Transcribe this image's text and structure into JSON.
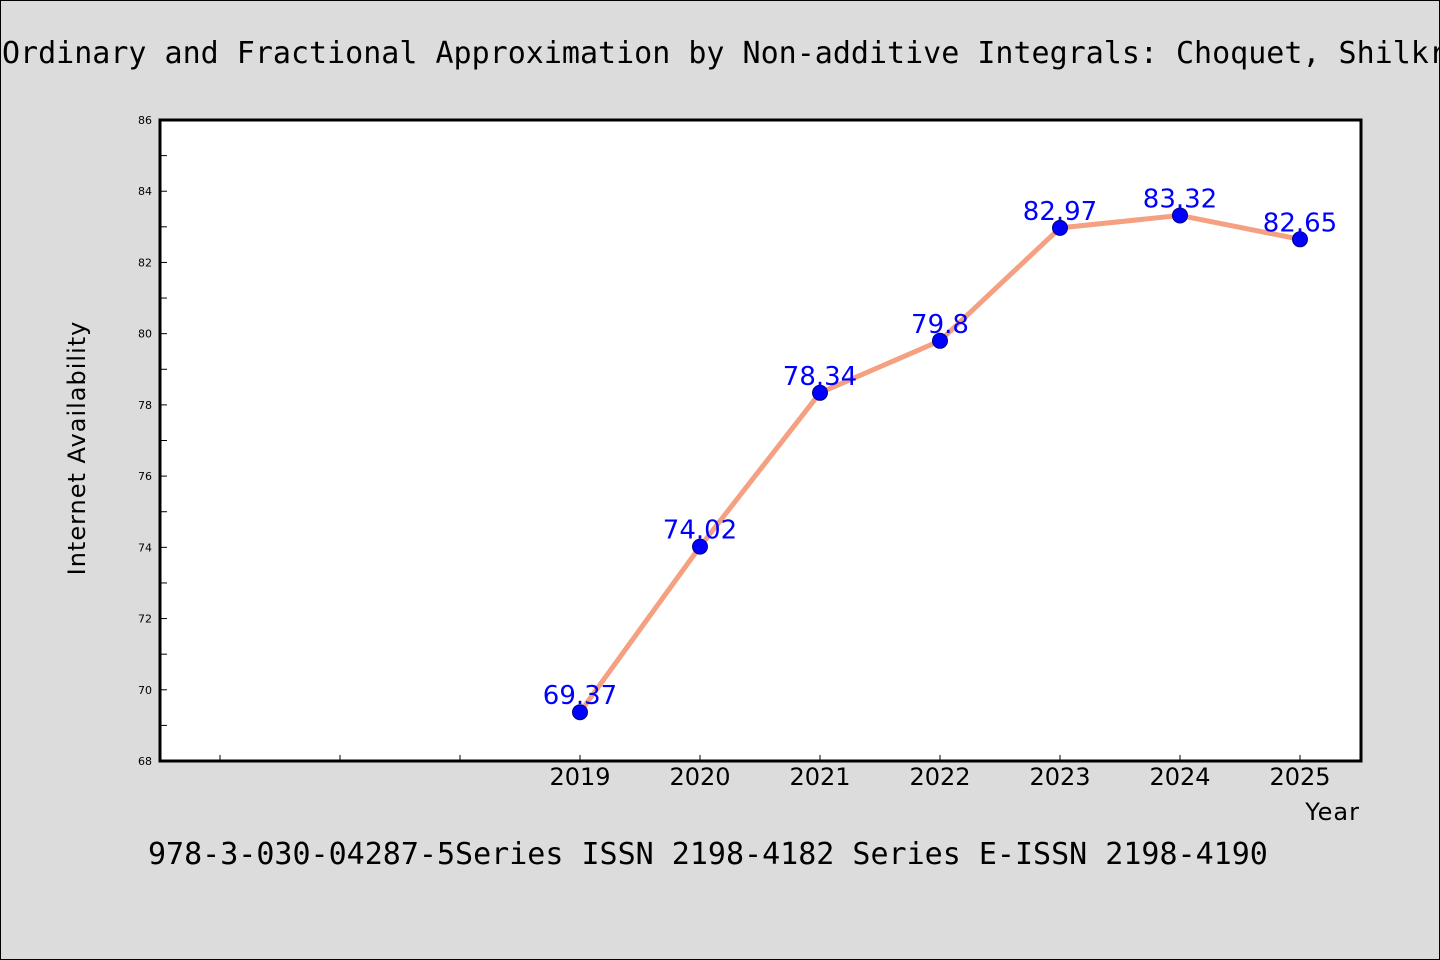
{
  "colors": {
    "background": "#dcdcdc",
    "plot_background": "#ffffff",
    "line": "#f5a080",
    "marker": "#0000ff",
    "data_label": "#0000ff"
  },
  "header": {
    "title": "Ordinary and Fractional Approximation by Non-additive Integrals: Choquet, Shilkr"
  },
  "footer": {
    "text": "978-3-030-04287-5Series ISSN 2198-4182 Series E-ISSN 2198-4190"
  },
  "chart_data": {
    "type": "line",
    "title": "Ordinary and Fractional Approximation by Non-additive Integrals: Choquet, Shilkr",
    "xlabel": "Year",
    "ylabel": "Internet Availability",
    "categories": [
      "2019",
      "2020",
      "2021",
      "2022",
      "2023",
      "2024",
      "2025"
    ],
    "series": [
      {
        "values": [
          69.37,
          74.02,
          78.34,
          79.8,
          82.97,
          83.32,
          82.65
        ],
        "labels": [
          "69.37",
          "74.02",
          "78.34",
          "79.8",
          "82.97",
          "83.32",
          "82.65"
        ]
      }
    ],
    "ylim": [
      68,
      86
    ],
    "yticks": [
      68,
      70,
      72,
      74,
      76,
      78,
      80,
      82,
      84,
      86
    ],
    "ytick_labels": [
      "68",
      "70",
      "72",
      "74",
      "76",
      "78",
      "80",
      "82",
      "84",
      "86"
    ],
    "grid": false,
    "legend": "none"
  }
}
